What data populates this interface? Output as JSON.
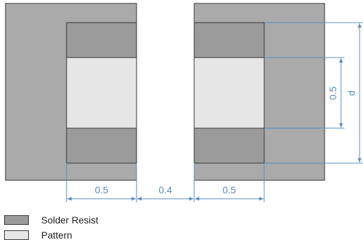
{
  "colors": {
    "pad_outer": "#aaaaaa",
    "solder_resist": "#9b9b9b",
    "pattern": "#e6e6e6",
    "outline": "#333333",
    "dimension": "#5a8bbf"
  },
  "dimensions": {
    "left_width": "0.5",
    "gap": "0.4",
    "right_width": "0.5",
    "pattern_height": "0.5",
    "total_height": "d"
  },
  "legend": {
    "solder_resist": "Solder Resist",
    "pattern": "Pattern"
  }
}
